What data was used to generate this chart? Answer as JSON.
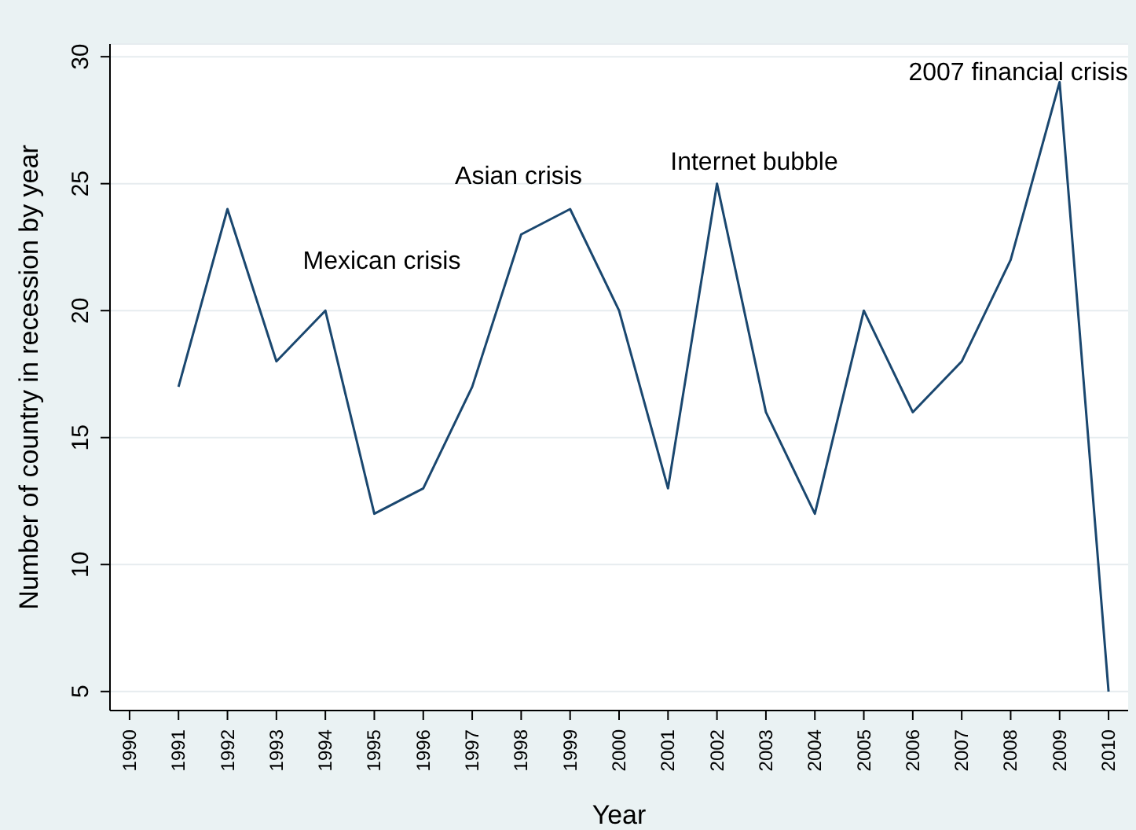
{
  "chart_data": {
    "type": "line",
    "xlabel": "Year",
    "ylabel": "Number of country in recession by year",
    "x": [
      1991,
      1992,
      1993,
      1994,
      1995,
      1996,
      1997,
      1998,
      1999,
      2000,
      2001,
      2002,
      2003,
      2004,
      2005,
      2006,
      2007,
      2008,
      2009,
      2010
    ],
    "series": [
      {
        "color": "#1a476f",
        "values": [
          17,
          24,
          18,
          20,
          12,
          13,
          17,
          23,
          24,
          20,
          13,
          25,
          16,
          12,
          20,
          16,
          18,
          22,
          29,
          5
        ]
      }
    ],
    "xlim": [
      1989.6,
      2010.4
    ],
    "xticks": [
      1990,
      1991,
      1992,
      1993,
      1994,
      1995,
      1996,
      1997,
      1998,
      1999,
      2000,
      2001,
      2002,
      2003,
      2004,
      2005,
      2006,
      2007,
      2008,
      2009,
      2010
    ],
    "ylim": [
      4.25,
      30.5
    ],
    "yticks": [
      5,
      10,
      15,
      20,
      25,
      30
    ],
    "grid": "y",
    "marker": "none",
    "line_style": "solid",
    "annotations": [
      "Mexican crisis",
      "Asian crisis",
      "Internet bubble",
      "2007 financial crisis"
    ]
  }
}
